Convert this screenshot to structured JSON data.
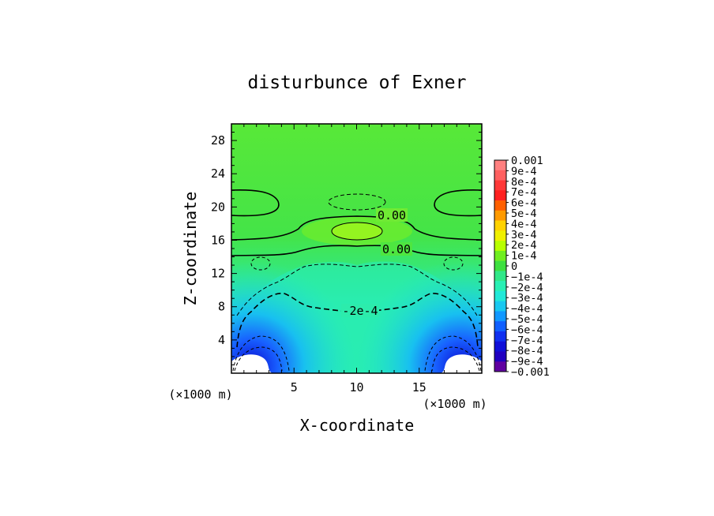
{
  "chart_data": {
    "type": "heatmap",
    "title": "disturbunce of Exner",
    "xlabel": "X-coordinate",
    "ylabel": "Z-coordinate",
    "x_unit": "(×1000 m)",
    "y_unit": "(×1000 m)",
    "xlim": [
      0,
      20
    ],
    "ylim": [
      0,
      30
    ],
    "x_ticks": [
      5,
      10,
      15
    ],
    "y_ticks": [
      4,
      8,
      12,
      16,
      20,
      24,
      28
    ],
    "colorbar": {
      "labels": [
        "0.001",
        "9e-4",
        "8e-4",
        "7e-4",
        "6e-4",
        "5e-4",
        "4e-4",
        "3e-4",
        "2e-4",
        "1e-4",
        "0",
        "-1e-4",
        "-2e-4",
        "-3e-4",
        "-4e-4",
        "-5e-4",
        "-6e-4",
        "-7e-4",
        "-8e-4",
        "-9e-4",
        "-0.001"
      ],
      "colors": [
        "#ff8080",
        "#ff6060",
        "#ff3838",
        "#ff2020",
        "#ff6000",
        "#ff9a00",
        "#ffd200",
        "#f0f000",
        "#b8ff00",
        "#70ee20",
        "#3ee040",
        "#30e888",
        "#28f0b4",
        "#20e8d8",
        "#18c8f0",
        "#1098ff",
        "#1060ff",
        "#1030f0",
        "#1010d8",
        "#2000c0",
        "#6000a0"
      ]
    },
    "contour_labels": [
      "0.00",
      "0.00",
      "-2e-4"
    ]
  }
}
